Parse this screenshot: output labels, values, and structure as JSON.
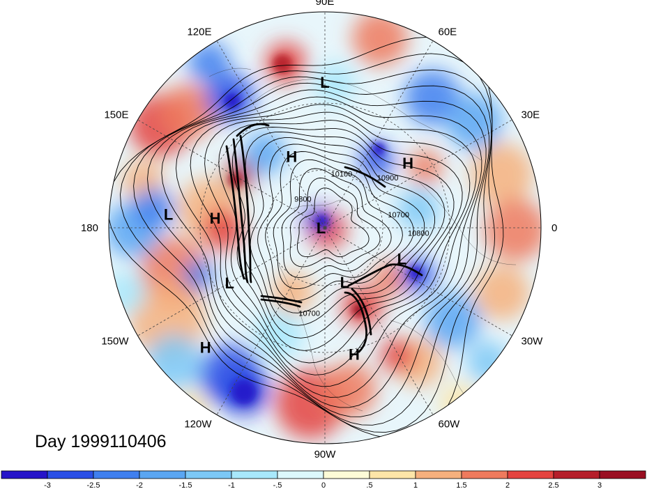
{
  "title": "Day 1999110406",
  "longitude_labels": [
    {
      "text": "90E",
      "angle_deg": 90
    },
    {
      "text": "60E",
      "angle_deg": 60
    },
    {
      "text": "30E",
      "angle_deg": 30
    },
    {
      "text": "0",
      "angle_deg": 0
    },
    {
      "text": "30W",
      "angle_deg": -30
    },
    {
      "text": "60W",
      "angle_deg": -60
    },
    {
      "text": "90W",
      "angle_deg": -90
    },
    {
      "text": "120W",
      "angle_deg": -120
    },
    {
      "text": "150W",
      "angle_deg": -150
    },
    {
      "text": "180",
      "angle_deg": 180
    },
    {
      "text": "150E",
      "angle_deg": 150
    },
    {
      "text": "120E",
      "angle_deg": 120
    }
  ],
  "pressure_systems": [
    {
      "type": "L",
      "lon": 90,
      "lat": 22
    },
    {
      "type": "H",
      "lon": 115,
      "lat": 50
    },
    {
      "type": "H",
      "lon": 38,
      "lat": 38
    },
    {
      "type": "L",
      "lon": 175,
      "lat": 18
    },
    {
      "type": "H",
      "lon": 175,
      "lat": 36
    },
    {
      "type": "L",
      "lon": 180,
      "lat": 88
    },
    {
      "type": "L",
      "lon": -150,
      "lat": 36
    },
    {
      "type": "L",
      "lon": -22,
      "lat": 48
    },
    {
      "type": "L",
      "lon": -70,
      "lat": 60
    },
    {
      "type": "H",
      "lon": -135,
      "lat": 14
    },
    {
      "type": "H",
      "lon": -77,
      "lat": 28
    }
  ],
  "contour_labels": [
    {
      "text": "9800",
      "lon": 130,
      "lat": 72
    },
    {
      "text": "10100",
      "lon": 72,
      "lat": 62
    },
    {
      "text": "10900",
      "lon": 37,
      "lat": 50
    },
    {
      "text": "10700",
      "lon": 8,
      "lat": 52
    },
    {
      "text": "10800",
      "lon": -5,
      "lat": 43
    },
    {
      "text": "10700",
      "lon": -100,
      "lat": 45
    }
  ],
  "colorbar": {
    "colors": [
      "#2614c9",
      "#2a4fe6",
      "#3f7fef",
      "#5aa6f2",
      "#7cc8f6",
      "#a8e8fb",
      "#dcf8fc",
      "#fdfbd7",
      "#fde5a8",
      "#f6b07d",
      "#ef7a5d",
      "#e4433f",
      "#b51e2a",
      "#9a0f22"
    ],
    "tick_labels": [
      "-3",
      "-2.5",
      "-2",
      "-1.5",
      "-1",
      "-.5",
      "0",
      ".5",
      "1",
      "1.5",
      "2",
      "2.5",
      "3"
    ]
  }
}
